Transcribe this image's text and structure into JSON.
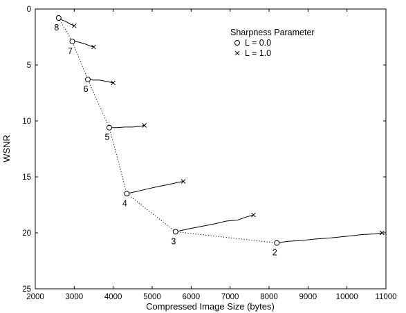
{
  "chart_data": {
    "type": "line",
    "xlabel": "Compressed Image Size (bytes)",
    "ylabel": "WSNR",
    "xlim": [
      2000,
      11000
    ],
    "ylim": [
      25,
      0
    ],
    "y_axis_inverted": true,
    "xticks": [
      2000,
      3000,
      4000,
      5000,
      6000,
      7000,
      8000,
      9000,
      10000,
      11000
    ],
    "yticks": [
      0,
      5,
      10,
      15,
      20,
      25
    ],
    "grid": false,
    "legend": {
      "title": "Sharpness Parameter",
      "position": "top-right",
      "entries": [
        {
          "marker": "circle",
          "label": "L = 0.0"
        },
        {
          "marker": "x",
          "label": "L = 1.0"
        }
      ]
    },
    "points": [
      {
        "label": "8",
        "l0": [
          2600,
          0.8
        ],
        "l1": [
          3000,
          1.5
        ]
      },
      {
        "label": "7",
        "l0": [
          2950,
          2.9
        ],
        "l1": [
          3500,
          3.4
        ]
      },
      {
        "label": "6",
        "l0": [
          3350,
          6.3
        ],
        "l1": [
          4000,
          6.6
        ]
      },
      {
        "label": "5",
        "l0": [
          3900,
          10.6
        ],
        "l1": [
          4800,
          10.4
        ]
      },
      {
        "label": "4",
        "l0": [
          4350,
          16.5
        ],
        "l1": [
          5800,
          15.4
        ]
      },
      {
        "label": "3",
        "l0": [
          5600,
          19.9
        ],
        "l1": [
          7600,
          18.4
        ]
      },
      {
        "label": "2",
        "l0": [
          8200,
          20.9
        ],
        "l1": [
          10900,
          20.0
        ]
      }
    ],
    "curves": [
      [
        [
          2600,
          0.8
        ],
        [
          2700,
          1.0
        ],
        [
          2800,
          1.15
        ],
        [
          2900,
          1.35
        ],
        [
          3000,
          1.5
        ]
      ],
      [
        [
          2950,
          2.9
        ],
        [
          3100,
          2.95
        ],
        [
          3200,
          3.05
        ],
        [
          3300,
          3.15
        ],
        [
          3400,
          3.3
        ],
        [
          3500,
          3.4
        ]
      ],
      [
        [
          3350,
          6.3
        ],
        [
          3500,
          6.35
        ],
        [
          3650,
          6.35
        ],
        [
          3800,
          6.45
        ],
        [
          4000,
          6.6
        ]
      ],
      [
        [
          3900,
          10.6
        ],
        [
          4100,
          10.6
        ],
        [
          4300,
          10.55
        ],
        [
          4500,
          10.55
        ],
        [
          4650,
          10.5
        ],
        [
          4800,
          10.4
        ]
      ],
      [
        [
          4350,
          16.5
        ],
        [
          4600,
          16.3
        ],
        [
          4850,
          16.1
        ],
        [
          5100,
          15.9
        ],
        [
          5400,
          15.7
        ],
        [
          5650,
          15.5
        ],
        [
          5800,
          15.4
        ]
      ],
      [
        [
          5600,
          19.9
        ],
        [
          5800,
          19.75
        ],
        [
          6000,
          19.6
        ],
        [
          6300,
          19.4
        ],
        [
          6600,
          19.2
        ],
        [
          6900,
          18.95
        ],
        [
          7200,
          18.85
        ],
        [
          7400,
          18.6
        ],
        [
          7600,
          18.4
        ]
      ],
      [
        [
          8200,
          20.9
        ],
        [
          8500,
          20.75
        ],
        [
          8800,
          20.7
        ],
        [
          9200,
          20.55
        ],
        [
          9600,
          20.45
        ],
        [
          10000,
          20.3
        ],
        [
          10400,
          20.15
        ],
        [
          10700,
          20.1
        ],
        [
          10900,
          20.0
        ]
      ]
    ]
  }
}
